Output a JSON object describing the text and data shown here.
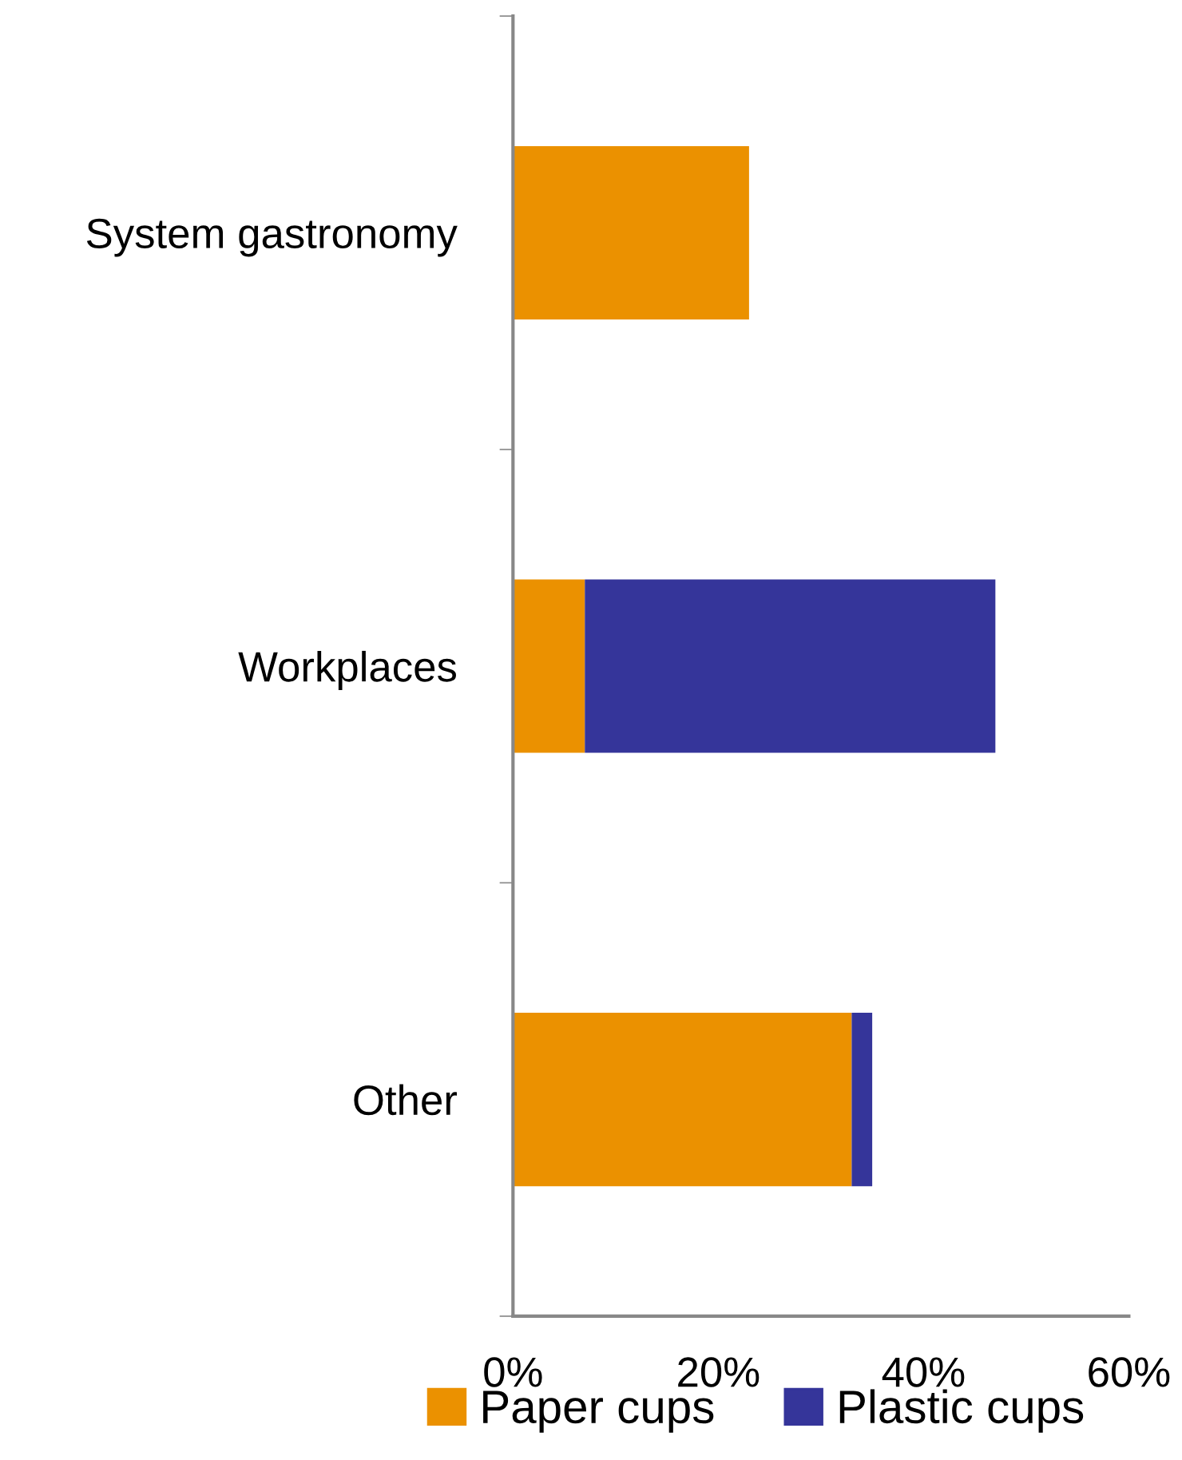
{
  "chart_data": {
    "type": "bar",
    "orientation": "horizontal",
    "stacked": true,
    "categories": [
      "System gastronomy",
      "Workplaces",
      "Other"
    ],
    "series": [
      {
        "name": "Paper cups",
        "color": "#eb9100",
        "values": [
          23,
          7,
          33
        ]
      },
      {
        "name": "Plastic cups",
        "color": "#35359a",
        "values": [
          0,
          40,
          2
        ]
      }
    ],
    "xlim": [
      0,
      60
    ],
    "xticks": [
      {
        "value": 0,
        "label": "0%"
      },
      {
        "value": 20,
        "label": "20%"
      },
      {
        "value": 40,
        "label": "40%"
      },
      {
        "value": 60,
        "label": "60%"
      }
    ],
    "legend": "bottom",
    "grid": false
  }
}
